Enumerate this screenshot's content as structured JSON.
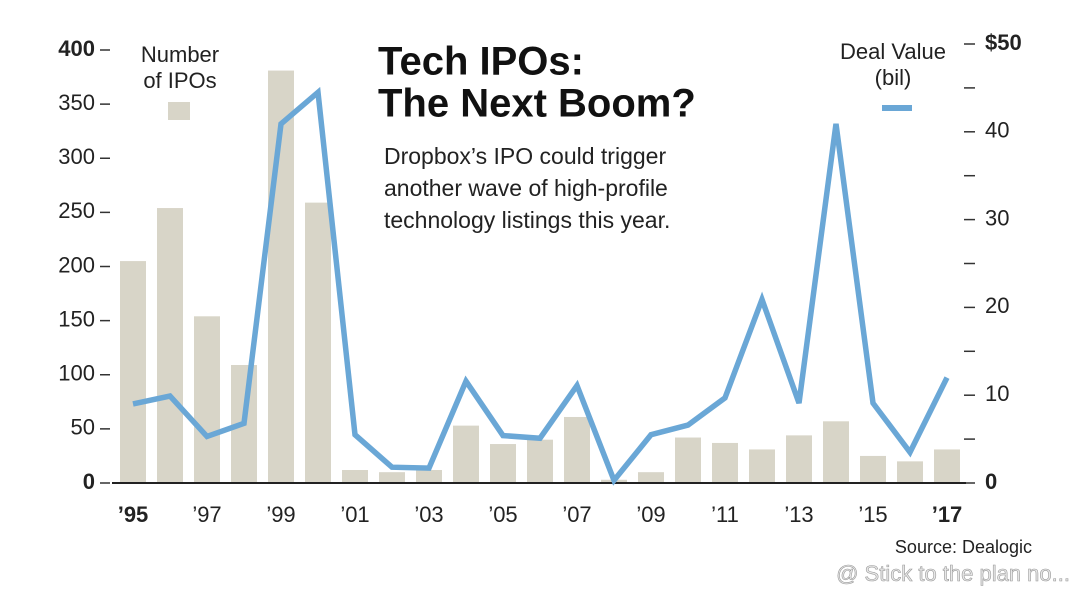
{
  "chart_data": {
    "type": "bar_line",
    "title": [
      "Tech IPOs:",
      "The Next Boom?"
    ],
    "subtitle": [
      "Dropbox’s IPO could trigger",
      "another wave of high-profile",
      "technology listings this year."
    ],
    "categories": [
      "’95",
      null,
      "’97",
      null,
      "’99",
      null,
      "’01",
      null,
      "’03",
      null,
      "’05",
      null,
      "’07",
      null,
      "’09",
      null,
      "’11",
      null,
      "’13",
      null,
      "’15",
      null,
      "’17"
    ],
    "series": [
      {
        "name": "Number of IPOs",
        "type": "bar",
        "color": "#d8d5c8",
        "values": [
          205,
          254,
          154,
          109,
          381,
          259,
          12,
          10,
          12,
          53,
          36,
          40,
          61,
          3,
          10,
          42,
          37,
          31,
          44,
          57,
          25,
          20,
          31
        ]
      },
      {
        "name": "Deal Value (bil)",
        "type": "line",
        "axis": "y2",
        "color": "#6aa7d6",
        "values": [
          9.0,
          9.9,
          5.3,
          6.8,
          40.9,
          44.5,
          5.5,
          1.8,
          1.7,
          11.6,
          5.4,
          5.1,
          11.1,
          0.3,
          5.5,
          6.6,
          9.7,
          20.9,
          9.1,
          40.9,
          9.1,
          3.5,
          12.0
        ]
      }
    ],
    "ylim": [
      0,
      400
    ],
    "yticks": [
      0,
      50,
      100,
      150,
      200,
      250,
      300,
      350,
      400
    ],
    "y2lim": [
      0,
      50
    ],
    "y2ticks": [
      0,
      10,
      20,
      30,
      40,
      {
        "value": 50,
        "label": "$50"
      }
    ],
    "y2minor_ticks": [
      5,
      15,
      25,
      35,
      45
    ],
    "source": "Source: Dealogic",
    "watermark": "@ Stick to the plan no..."
  }
}
